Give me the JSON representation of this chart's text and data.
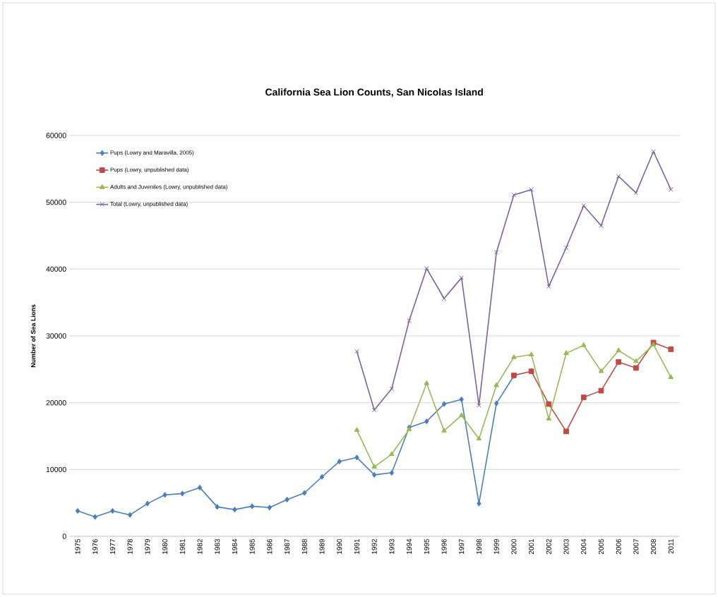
{
  "chart_data": {
    "type": "line",
    "title": "California Sea Lion Counts, San Nicolas Island",
    "ylabel": "Number of Sea Lions",
    "categories": [
      "1975",
      "1976",
      "1977",
      "1978",
      "1979",
      "1980",
      "1981",
      "1982",
      "1983",
      "1984",
      "1985",
      "1986",
      "1987",
      "1988",
      "1989",
      "1990",
      "1991",
      "1992",
      "1993",
      "1994",
      "1995",
      "1996",
      "1997",
      "1998",
      "1999",
      "2000",
      "2001",
      "2002",
      "2003",
      "2004",
      "2005",
      "2006",
      "2007",
      "2008",
      "2011"
    ],
    "series": [
      {
        "name": "Pups (Lowry and Maravilla, 2005)",
        "color": "#4a7ebb",
        "marker": "diamond",
        "values": [
          3800,
          2900,
          3800,
          3200,
          4900,
          6200,
          6400,
          7300,
          4400,
          4000,
          4500,
          4300,
          5500,
          6500,
          8900,
          11200,
          11800,
          9200,
          9500,
          16300,
          17200,
          19800,
          20500,
          4900,
          19900,
          24000,
          null,
          null,
          null,
          null,
          null,
          null,
          null,
          null,
          null
        ]
      },
      {
        "name": "Pups (Lowry, unpublished data)",
        "color": "#be4b48",
        "marker": "square",
        "values": [
          null,
          null,
          null,
          null,
          null,
          null,
          null,
          null,
          null,
          null,
          null,
          null,
          null,
          null,
          null,
          null,
          null,
          null,
          null,
          null,
          null,
          null,
          null,
          null,
          null,
          24100,
          24700,
          19800,
          15700,
          20800,
          21800,
          26100,
          25200,
          29000,
          28000
        ]
      },
      {
        "name": "Adults and Juveniles (Lowry, unpublished data)",
        "color": "#98b954",
        "marker": "triangle",
        "values": [
          null,
          null,
          null,
          null,
          null,
          null,
          null,
          null,
          null,
          null,
          null,
          null,
          null,
          null,
          null,
          null,
          15900,
          10400,
          12300,
          16000,
          22900,
          15800,
          18100,
          14600,
          22600,
          26800,
          27200,
          17600,
          27400,
          28600,
          24700,
          27800,
          26200,
          28700,
          23800
        ]
      },
      {
        "name": "Total (Lowry, unpublished data)",
        "color": "#7d60a0",
        "marker": "cross",
        "values": [
          null,
          null,
          null,
          null,
          null,
          null,
          null,
          null,
          null,
          null,
          null,
          null,
          null,
          null,
          null,
          null,
          27700,
          18900,
          22100,
          32300,
          40100,
          35600,
          38700,
          19600,
          42500,
          51100,
          51900,
          37400,
          43200,
          49500,
          46500,
          53900,
          51400,
          57600,
          51900
        ]
      }
    ],
    "ylim": [
      0,
      60000
    ],
    "yticks": [
      0,
      10000,
      20000,
      30000,
      40000,
      50000,
      60000
    ],
    "grid": "y",
    "legend": "top left"
  }
}
